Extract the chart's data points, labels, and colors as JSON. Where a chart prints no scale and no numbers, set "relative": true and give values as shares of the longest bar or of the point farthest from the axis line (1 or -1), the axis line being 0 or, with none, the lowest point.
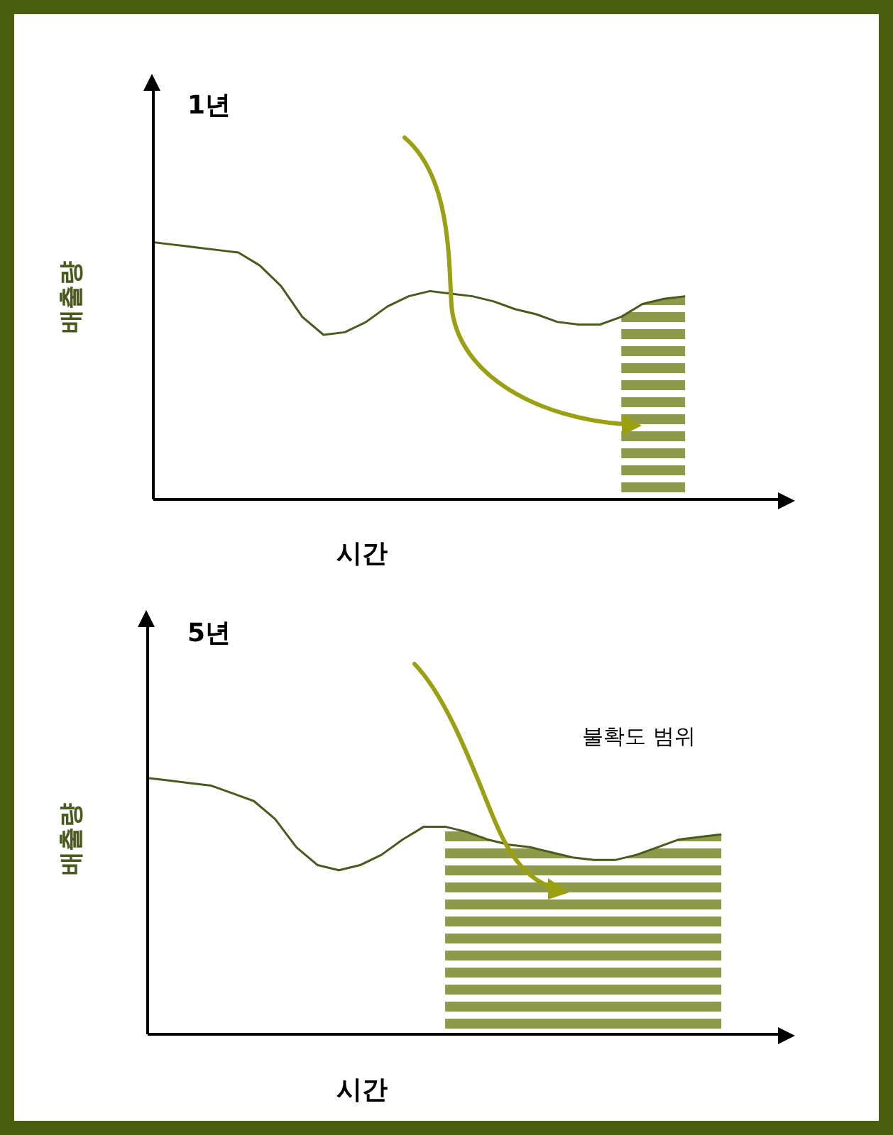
{
  "chart_data": [
    {
      "type": "line",
      "title": "1년",
      "xlabel": "시간",
      "ylabel": "배출량",
      "relative": true,
      "categories": [
        null,
        null,
        null,
        null,
        null,
        null,
        null,
        null,
        null,
        null,
        null,
        null,
        null,
        null,
        null,
        null,
        null,
        null,
        null,
        null,
        null,
        null,
        null,
        null,
        null,
        null,
        null,
        null,
        null,
        null
      ],
      "series": [
        {
          "color": "#4a5a1e",
          "values": [
            1.0,
            0.99,
            0.98,
            0.97,
            0.96,
            0.91,
            0.83,
            0.71,
            0.64,
            0.65,
            0.69,
            0.75,
            0.79,
            0.81,
            0.8,
            0.79,
            0.77,
            0.74,
            0.72,
            0.69,
            0.68,
            0.68,
            0.71,
            0.76,
            0.78,
            0.79,
            null,
            null,
            null,
            null
          ]
        },
        {
          "type": "area",
          "color": "#8c9a4a",
          "values": [
            null,
            null,
            null,
            null,
            null,
            null,
            null,
            null,
            null,
            null,
            null,
            null,
            null,
            null,
            null,
            null,
            null,
            null,
            null,
            null,
            null,
            null,
            0.71,
            0.76,
            0.78,
            0.79,
            null,
            null,
            null,
            null
          ]
        }
      ]
    },
    {
      "type": "line",
      "title": "5년",
      "xlabel": "시간",
      "ylabel": "배출량",
      "relative": true,
      "annotations": [
        "불확도 범위"
      ],
      "categories": [
        null,
        null,
        null,
        null,
        null,
        null,
        null,
        null,
        null,
        null,
        null,
        null,
        null,
        null,
        null,
        null,
        null,
        null,
        null,
        null,
        null,
        null,
        null,
        null,
        null,
        null,
        null,
        null,
        null,
        null
      ],
      "series": [
        {
          "color": "#4a5a1e",
          "values": [
            1.0,
            0.99,
            0.98,
            0.97,
            0.94,
            0.91,
            0.84,
            0.73,
            0.66,
            0.64,
            0.66,
            0.7,
            0.76,
            0.81,
            0.81,
            0.79,
            0.76,
            0.74,
            0.73,
            0.71,
            0.69,
            0.68,
            0.68,
            0.7,
            0.73,
            0.76,
            0.77,
            0.78,
            null,
            null
          ]
        },
        {
          "type": "area",
          "color": "#8c9a4a",
          "values": [
            null,
            null,
            null,
            null,
            null,
            null,
            null,
            null,
            null,
            null,
            null,
            null,
            null,
            null,
            0.81,
            0.79,
            0.76,
            0.74,
            0.73,
            0.71,
            0.69,
            0.68,
            0.68,
            0.7,
            0.73,
            0.76,
            0.77,
            0.78,
            null,
            null
          ]
        }
      ]
    }
  ]
}
